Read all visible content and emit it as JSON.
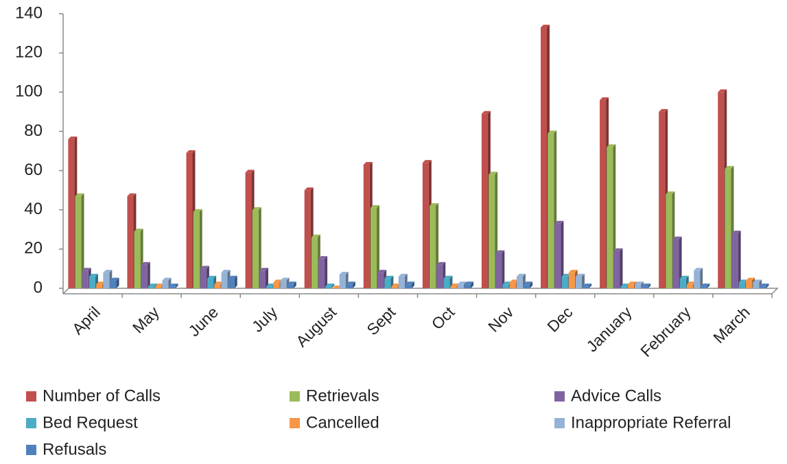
{
  "chart_data": {
    "type": "bar3d",
    "categories": [
      "April",
      "May",
      "June",
      "July",
      "August",
      "Sept",
      "Oct",
      "Nov",
      "Dec",
      "January",
      "February",
      "March"
    ],
    "series": [
      {
        "name": "Number of Calls",
        "color": "#c0504d",
        "values": [
          76,
          47,
          69,
          59,
          50,
          63,
          64,
          89,
          133,
          96,
          90,
          100
        ]
      },
      {
        "name": "Retrievals",
        "color": "#9bbb59",
        "values": [
          47,
          29,
          39,
          40,
          26,
          41,
          42,
          58,
          79,
          72,
          48,
          61
        ]
      },
      {
        "name": "Advice Calls",
        "color": "#8064a2",
        "values": [
          9,
          12,
          10,
          9,
          15,
          8,
          12,
          18,
          33,
          19,
          25,
          28
        ]
      },
      {
        "name": "Bed Request",
        "color": "#4bacc6",
        "values": [
          6,
          1,
          5,
          1,
          1,
          5,
          5,
          2,
          6,
          1,
          5,
          3
        ]
      },
      {
        "name": "Cancelled",
        "color": "#f79646",
        "values": [
          2,
          1,
          2,
          3,
          0,
          1,
          1,
          3,
          8,
          2,
          2,
          4
        ]
      },
      {
        "name": "Inappropriate Referral",
        "color": "#95b3d7",
        "values": [
          8,
          4,
          8,
          4,
          7,
          6,
          2,
          6,
          6,
          2,
          9,
          3
        ]
      },
      {
        "name": "Refusals",
        "color": "#4f81bd",
        "values": [
          4,
          1,
          5,
          2,
          2,
          2,
          2,
          2,
          1,
          1,
          1,
          1
        ]
      }
    ],
    "ylim": [
      0,
      140
    ],
    "yticks": [
      0,
      20,
      40,
      60,
      80,
      100,
      120,
      140
    ],
    "grid": false,
    "legend": "bottom"
  }
}
